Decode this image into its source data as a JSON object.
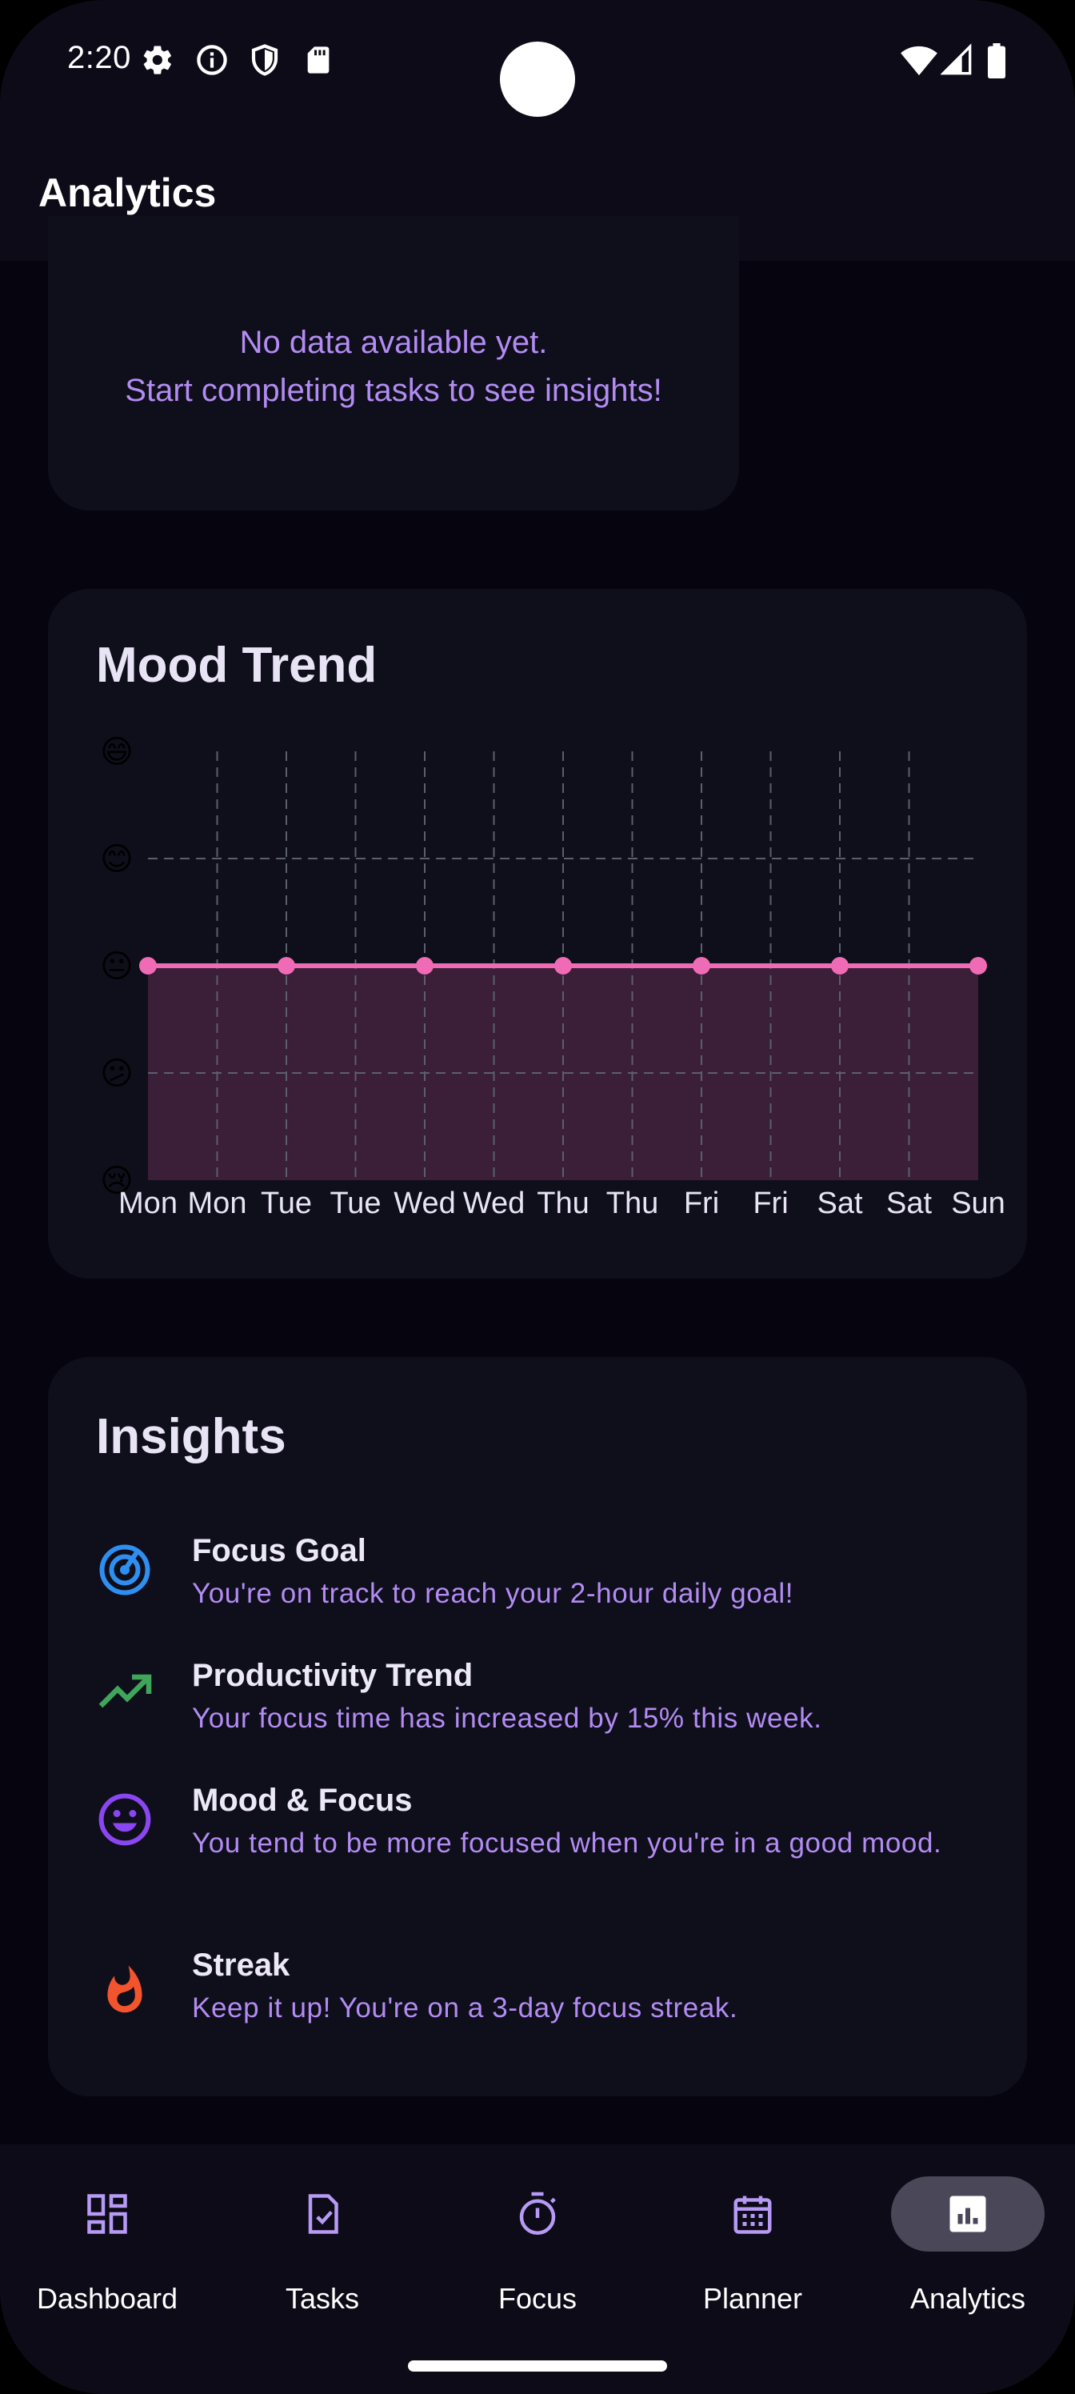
{
  "status_bar": {
    "time": "2:20",
    "left_icons": [
      "gear-icon",
      "info-icon",
      "shield-icon",
      "sd-card-icon"
    ],
    "right_icons": [
      "wifi-icon",
      "signal-icon",
      "battery-icon"
    ]
  },
  "app_bar": {
    "title": "Analytics"
  },
  "empty_state": {
    "line1": "No data available yet.",
    "line2": "Start completing tasks to see insights!"
  },
  "mood_card": {
    "title": "Mood Trend"
  },
  "chart_data": {
    "type": "area",
    "title": "Mood Trend",
    "xlabel": "",
    "ylabel": "",
    "x_labels": [
      "Mon",
      "Mon",
      "Tue",
      "Tue",
      "Wed",
      "Wed",
      "Thu",
      "Thu",
      "Fri",
      "Fri",
      "Sat",
      "Sat",
      "Sun"
    ],
    "y_labels": [
      "😢",
      "😕",
      "😐",
      "😊",
      "😄"
    ],
    "ylim": [
      1,
      5
    ],
    "series": [
      {
        "values": [
          3,
          3,
          3,
          3,
          3,
          3,
          3,
          3,
          3,
          3,
          3,
          3,
          3
        ],
        "markers_at": [
          0,
          2,
          4,
          6,
          8,
          10,
          12
        ]
      }
    ],
    "grid": true,
    "colors": {
      "line": "#f06bb5",
      "fill": "#3b1e38",
      "grid": "#5a5f6e"
    }
  },
  "insights": {
    "title": "Insights",
    "items": [
      {
        "icon": "target-icon",
        "color": "#2f8ff0",
        "title": "Focus Goal",
        "body": "You're on track to reach your 2-hour daily goal!"
      },
      {
        "icon": "trending-up-icon",
        "color": "#3fa55a",
        "title": "Productivity Trend",
        "body": "Your focus time has increased by 15% this week."
      },
      {
        "icon": "smile-icon",
        "color": "#8a46f0",
        "title": "Mood & Focus",
        "body": "You tend to be more focused when you're in a good mood."
      },
      {
        "icon": "fire-icon",
        "color": "#f2542d",
        "title": "Streak",
        "body": "Keep it up! You're on a 3-day focus streak."
      }
    ]
  },
  "bottom_nav": {
    "items": [
      {
        "label": "Dashboard",
        "icon": "dashboard-icon",
        "active": false
      },
      {
        "label": "Tasks",
        "icon": "tasks-icon",
        "active": false
      },
      {
        "label": "Focus",
        "icon": "timer-icon",
        "active": false
      },
      {
        "label": "Planner",
        "icon": "calendar-icon",
        "active": false
      },
      {
        "label": "Analytics",
        "icon": "analytics-icon",
        "active": true
      }
    ],
    "icon_color": "#b69af4"
  }
}
